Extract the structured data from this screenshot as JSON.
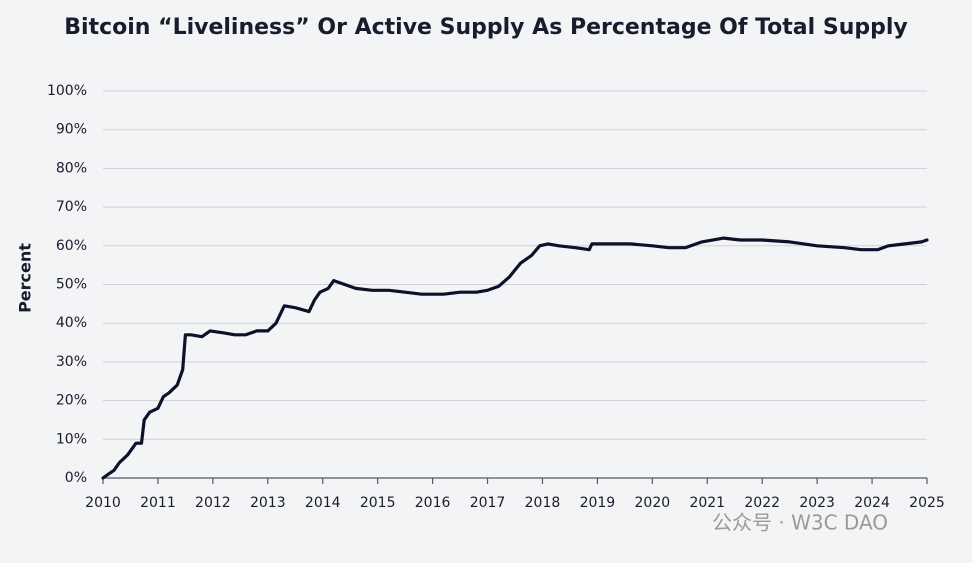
{
  "chart_data": {
    "type": "line",
    "title": "Bitcoin “Liveliness” Or Active Supply As Percentage Of Total Supply",
    "y_label": "Percent",
    "annotations": [
      "公众号 · W3C DAO"
    ],
    "x": [
      2010.0,
      2010.1,
      2010.2,
      2010.3,
      2010.45,
      2010.6,
      2010.7,
      2010.75,
      2010.85,
      2011.0,
      2011.1,
      2011.2,
      2011.35,
      2011.45,
      2011.5,
      2011.6,
      2011.8,
      2011.95,
      2012.2,
      2012.4,
      2012.6,
      2012.8,
      2013.0,
      2013.15,
      2013.3,
      2013.5,
      2013.75,
      2013.85,
      2013.95,
      2014.1,
      2014.2,
      2014.4,
      2014.6,
      2014.9,
      2015.2,
      2015.5,
      2015.8,
      2016.0,
      2016.2,
      2016.5,
      2016.8,
      2017.0,
      2017.2,
      2017.4,
      2017.6,
      2017.8,
      2017.95,
      2018.1,
      2018.3,
      2018.6,
      2018.85,
      2018.9,
      2019.0,
      2019.3,
      2019.6,
      2020.0,
      2020.3,
      2020.6,
      2020.9,
      2021.3,
      2021.6,
      2022.0,
      2022.5,
      2023.0,
      2023.5,
      2023.8,
      2024.1,
      2024.3,
      2024.6,
      2024.9,
      2025.0
    ],
    "series": [
      {
        "name": "Liveliness",
        "color": "#10102a",
        "values": [
          0,
          1,
          2,
          4,
          6,
          9,
          9,
          15,
          17,
          18,
          21,
          22,
          24,
          28,
          37,
          37,
          36.5,
          38,
          37.5,
          37,
          37,
          38,
          38,
          40,
          44.5,
          44,
          43,
          46,
          48,
          49,
          51,
          50,
          49,
          48.5,
          48.5,
          48,
          47.5,
          47.5,
          47.5,
          48,
          48,
          48.5,
          49.5,
          52,
          55.5,
          57.5,
          60,
          60.5,
          60,
          59.5,
          59,
          60.5,
          60.5,
          60.5,
          60.5,
          60,
          59.5,
          59.5,
          61,
          62,
          61.5,
          61.5,
          61,
          60,
          59.5,
          59,
          59,
          60,
          60.5,
          61,
          61.5
        ]
      }
    ],
    "xlim": [
      2010,
      2025
    ],
    "xticks": [
      2010,
      2011,
      2012,
      2013,
      2014,
      2015,
      2016,
      2017,
      2018,
      2019,
      2020,
      2021,
      2022,
      2023,
      2024,
      2025
    ],
    "ylim": [
      0,
      100
    ],
    "yticks": [
      {
        "value": 0,
        "label": "0%"
      },
      {
        "value": 10,
        "label": "10%"
      },
      {
        "value": 20,
        "label": "20%"
      },
      {
        "value": 30,
        "label": "30%"
      },
      {
        "value": 40,
        "label": "40%"
      },
      {
        "value": 50,
        "label": "50%"
      },
      {
        "value": 60,
        "label": "60%"
      },
      {
        "value": 70,
        "label": "70%"
      },
      {
        "value": 80,
        "label": "80%"
      },
      {
        "value": 90,
        "label": "90%"
      },
      {
        "value": 100,
        "label": "100%"
      }
    ],
    "grid": true
  }
}
